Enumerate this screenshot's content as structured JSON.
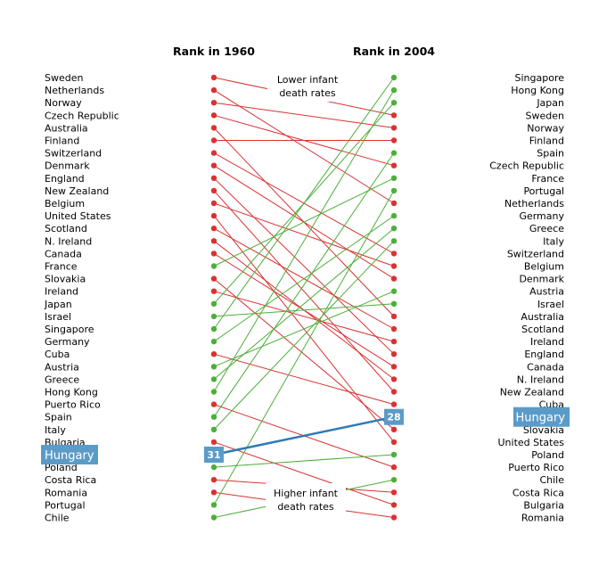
{
  "chart_data": {
    "type": "slope",
    "left_header": "Rank in 1960",
    "right_header": "Rank in 2004",
    "left_countries": [
      "Sweden",
      "Netherlands",
      "Norway",
      "Czech Republic",
      "Australia",
      "Finland",
      "Switzerland",
      "Denmark",
      "England",
      "New Zealand",
      "Belgium",
      "United States",
      "Scotland",
      "N. Ireland",
      "Canada",
      "France",
      "Slovakia",
      "Ireland",
      "Japan",
      "Israel",
      "Singapore",
      "Germany",
      "Cuba",
      "Austria",
      "Greece",
      "Hong Kong",
      "Puerto Rico",
      "Spain",
      "Italy",
      "Bulgaria",
      "Hungary",
      "Poland",
      "Costa Rica",
      "Romania",
      "Portugal",
      "Chile"
    ],
    "right_countries": [
      "Singapore",
      "Hong Kong",
      "Japan",
      "Sweden",
      "Norway",
      "Finland",
      "Spain",
      "Czech Republic",
      "France",
      "Portugal",
      "Netherlands",
      "Germany",
      "Greece",
      "Italy",
      "Switzerland",
      "Belgium",
      "Denmark",
      "Austria",
      "Israel",
      "Australia",
      "Scotland",
      "Ireland",
      "England",
      "Canada",
      "N. Ireland",
      "New Zealand",
      "Cuba",
      "Hungary",
      "Slovakia",
      "United States",
      "Poland",
      "Puerto Rico",
      "Chile",
      "Costa Rica",
      "Bulgaria",
      "Romania"
    ],
    "highlight": {
      "country": "Hungary",
      "rank_1960": "31",
      "rank_2004": "28"
    },
    "annotations": {
      "lower": [
        "Lower infant",
        "death rates"
      ],
      "higher": [
        "Higher infant",
        "death rates"
      ]
    },
    "colors": {
      "improved": "#4caf3a",
      "worsened": "#d93232",
      "highlight": "#2e7bb4",
      "highlight_box": "#5b9bc8"
    }
  }
}
